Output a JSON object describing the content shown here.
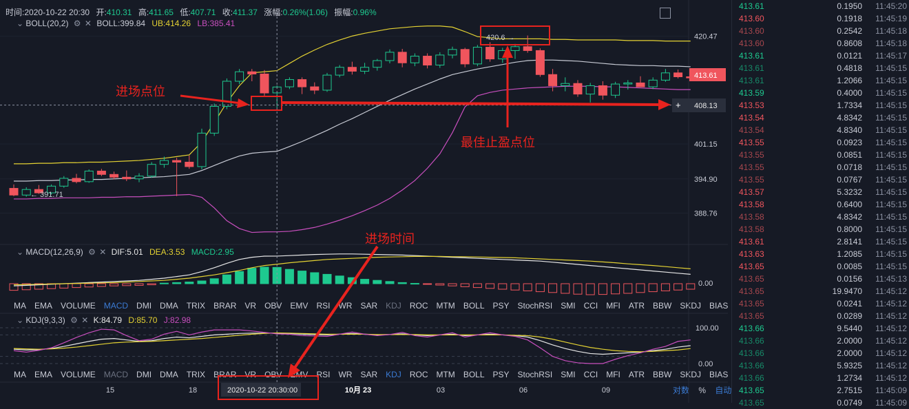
{
  "header": {
    "time_label": "时间:",
    "time": "2020-10-22 20:30",
    "open_label": "开:",
    "open": "410.31",
    "high_label": "高:",
    "high": "411.65",
    "low_label": "低:",
    "low": "407.71",
    "close_label": "收:",
    "close": "411.37",
    "change_label": "涨幅:",
    "change": "0.26%(1.06)",
    "amp_label": "振幅:",
    "amp": "0.96%"
  },
  "boll": {
    "name": "BOLL(20,2)",
    "mid": "BOLL:399.84",
    "ub": "UB:414.26",
    "lb": "LB:385.41"
  },
  "macd": {
    "name": "MACD(12,26,9)",
    "dif": "DIF:5.01",
    "dea": "DEA:3.53",
    "macd": "MACD:2.95",
    "zero": "0.00"
  },
  "kdj": {
    "name": "KDJ(9,3,3)",
    "k": "K:84.79",
    "d": "D:85.70",
    "j": "J:82.98",
    "top": "100.00",
    "bottom": "0.00"
  },
  "indicators": [
    "MA",
    "EMA",
    "VOLUME",
    "MACD",
    "DMI",
    "DMA",
    "TRIX",
    "BRAR",
    "VR",
    "OBV",
    "EMV",
    "RSI",
    "WR",
    "SAR",
    "KDJ",
    "ROC",
    "MTM",
    "BOLL",
    "PSY",
    "StochRSI",
    "SMI",
    "CCI",
    "MFI",
    "ATR",
    "BBW",
    "SKDJ",
    "BIAS"
  ],
  "price_axis": [
    "420.47",
    "401.15",
    "394.90",
    "388.76"
  ],
  "current_price": "413.61",
  "crosshair_price": "408.13",
  "min_label": "← 391.71",
  "max_label": "420.6 →",
  "x_ticks": [
    "15",
    "18",
    "10月 23",
    "03",
    "06",
    "09"
  ],
  "crosshair_time": "2020-10-22 20:30:00",
  "bottom_right": {
    "log": "对数",
    "pct": "%",
    "auto": "自动"
  },
  "annotations": {
    "entry_point": "进场点位",
    "best_tp": "最佳止盈点位",
    "entry_time": "进场时间"
  },
  "colors": {
    "up": "#1ec98f",
    "down": "#f0555d",
    "upper_band": "#e5d333",
    "mid_band": "#c9ccd6",
    "lower_band": "#c94fbf",
    "annotation": "#e8231e"
  },
  "trades": [
    {
      "p": "413.61",
      "v": "0.1950",
      "t": "11:45:20",
      "s": "up"
    },
    {
      "p": "413.60",
      "v": "0.1918",
      "t": "11:45:19",
      "s": "dn"
    },
    {
      "p": "413.60",
      "v": "0.2542",
      "t": "11:45:18",
      "s": "dn-dim"
    },
    {
      "p": "413.60",
      "v": "0.8608",
      "t": "11:45:18",
      "s": "dn-dim"
    },
    {
      "p": "413.61",
      "v": "0.0121",
      "t": "11:45:17",
      "s": "up"
    },
    {
      "p": "413.61",
      "v": "0.4818",
      "t": "11:45:15",
      "s": "up-dim"
    },
    {
      "p": "413.61",
      "v": "1.2066",
      "t": "11:45:15",
      "s": "up-dim"
    },
    {
      "p": "413.59",
      "v": "0.4000",
      "t": "11:45:15",
      "s": "up"
    },
    {
      "p": "413.53",
      "v": "1.7334",
      "t": "11:45:15",
      "s": "dn"
    },
    {
      "p": "413.54",
      "v": "4.8342",
      "t": "11:45:15",
      "s": "dn"
    },
    {
      "p": "413.54",
      "v": "4.8340",
      "t": "11:45:15",
      "s": "dn-dim"
    },
    {
      "p": "413.55",
      "v": "0.0923",
      "t": "11:45:15",
      "s": "dn"
    },
    {
      "p": "413.55",
      "v": "0.0851",
      "t": "11:45:15",
      "s": "dn-dim"
    },
    {
      "p": "413.55",
      "v": "0.0718",
      "t": "11:45:15",
      "s": "dn-dim"
    },
    {
      "p": "413.55",
      "v": "0.0767",
      "t": "11:45:15",
      "s": "dn-dim"
    },
    {
      "p": "413.57",
      "v": "5.3232",
      "t": "11:45:15",
      "s": "dn"
    },
    {
      "p": "413.58",
      "v": "0.6400",
      "t": "11:45:15",
      "s": "dn"
    },
    {
      "p": "413.58",
      "v": "4.8342",
      "t": "11:45:15",
      "s": "dn-dim"
    },
    {
      "p": "413.58",
      "v": "0.8000",
      "t": "11:45:15",
      "s": "dn-dim"
    },
    {
      "p": "413.61",
      "v": "2.8141",
      "t": "11:45:15",
      "s": "dn"
    },
    {
      "p": "413.63",
      "v": "1.2085",
      "t": "11:45:15",
      "s": "dn"
    },
    {
      "p": "413.65",
      "v": "0.0085",
      "t": "11:45:15",
      "s": "dn"
    },
    {
      "p": "413.65",
      "v": "0.0156",
      "t": "11:45:13",
      "s": "dn-dim"
    },
    {
      "p": "413.65",
      "v": "19.9470",
      "t": "11:45:12",
      "s": "dn-dim"
    },
    {
      "p": "413.65",
      "v": "0.0241",
      "t": "11:45:12",
      "s": "dn-dim"
    },
    {
      "p": "413.65",
      "v": "0.0289",
      "t": "11:45:12",
      "s": "dn-dim"
    },
    {
      "p": "413.66",
      "v": "9.5440",
      "t": "11:45:12",
      "s": "up"
    },
    {
      "p": "413.66",
      "v": "2.0000",
      "t": "11:45:12",
      "s": "up-dim"
    },
    {
      "p": "413.66",
      "v": "2.0000",
      "t": "11:45:12",
      "s": "up-dim"
    },
    {
      "p": "413.66",
      "v": "5.9325",
      "t": "11:45:12",
      "s": "up-dim"
    },
    {
      "p": "413.66",
      "v": "1.2734",
      "t": "11:45:12",
      "s": "up-dim"
    },
    {
      "p": "413.65",
      "v": "2.7515",
      "t": "11:45:09",
      "s": "up"
    },
    {
      "p": "413.65",
      "v": "0.0749",
      "t": "11:45:09",
      "s": "up-dim"
    }
  ],
  "chart_data": {
    "type": "candlestick",
    "price_ylim": [
      385,
      424
    ],
    "candles": [
      [
        393.2,
        393.9,
        391.8,
        392.0
      ],
      [
        392.0,
        393.4,
        391.7,
        393.0
      ],
      [
        393.0,
        393.8,
        392.2,
        392.4
      ],
      [
        392.4,
        393.9,
        392.1,
        393.6
      ],
      [
        393.6,
        395.4,
        393.3,
        395.0
      ],
      [
        395.0,
        395.8,
        394.1,
        394.4
      ],
      [
        394.4,
        396.6,
        394.2,
        396.3
      ],
      [
        396.3,
        396.7,
        395.4,
        395.7
      ],
      [
        395.7,
        396.2,
        394.8,
        395.2
      ],
      [
        395.2,
        396.4,
        394.5,
        394.9
      ],
      [
        394.9,
        395.9,
        394.3,
        395.4
      ],
      [
        395.4,
        397.9,
        395.1,
        397.5
      ],
      [
        397.5,
        398.9,
        396.9,
        398.2
      ],
      [
        398.2,
        398.7,
        391.8,
        397.9
      ],
      [
        397.9,
        399.1,
        396.7,
        397.1
      ],
      [
        397.1,
        403.9,
        396.6,
        403.1
      ],
      [
        403.1,
        408.4,
        402.6,
        407.9
      ],
      [
        407.9,
        412.9,
        407.4,
        412.4
      ],
      [
        412.4,
        414.6,
        411.9,
        414.1
      ],
      [
        414.1,
        414.6,
        412.4,
        413.7
      ],
      [
        413.7,
        414.4,
        409.6,
        410.3
      ],
      [
        410.31,
        411.65,
        407.71,
        411.37
      ],
      [
        411.4,
        413.1,
        411.0,
        412.7
      ],
      [
        412.7,
        413.1,
        410.1,
        411.4
      ],
      [
        411.4,
        412.2,
        410.1,
        410.8
      ],
      [
        410.8,
        413.9,
        410.5,
        413.5
      ],
      [
        413.5,
        415.3,
        413.1,
        414.9
      ],
      [
        414.9,
        415.9,
        413.6,
        414.2
      ],
      [
        414.2,
        415.7,
        413.7,
        414.9
      ],
      [
        414.9,
        416.4,
        414.3,
        416.1
      ],
      [
        416.1,
        418.1,
        415.6,
        417.6
      ],
      [
        417.6,
        418.2,
        414.9,
        415.7
      ],
      [
        415.7,
        417.4,
        415.1,
        416.9
      ],
      [
        416.9,
        417.4,
        414.7,
        415.3
      ],
      [
        415.3,
        417.6,
        414.8,
        417.1
      ],
      [
        417.1,
        418.6,
        416.5,
        418.1
      ],
      [
        418.1,
        418.4,
        414.9,
        415.5
      ],
      [
        415.5,
        418.9,
        415.1,
        418.5
      ],
      [
        418.5,
        419.4,
        415.9,
        416.4
      ],
      [
        416.4,
        418.4,
        415.7,
        417.9
      ],
      [
        417.9,
        419.1,
        416.4,
        418.6
      ],
      [
        418.6,
        420.6,
        417.5,
        417.9
      ],
      [
        417.9,
        418.3,
        413.2,
        413.6
      ],
      [
        413.6,
        414.6,
        410.6,
        411.6
      ],
      [
        411.6,
        413.1,
        410.6,
        412.0
      ],
      [
        412.0,
        412.6,
        409.6,
        410.1
      ],
      [
        410.1,
        412.1,
        408.6,
        411.6
      ],
      [
        411.6,
        412.4,
        409.1,
        409.9
      ],
      [
        409.9,
        412.3,
        409.4,
        411.9
      ],
      [
        411.9,
        412.6,
        410.9,
        412.1
      ],
      [
        412.1,
        413.3,
        411.4,
        411.4
      ],
      [
        411.4,
        413.1,
        411.0,
        412.6
      ],
      [
        412.6,
        414.6,
        412.3,
        413.9
      ],
      [
        413.9,
        414.5,
        412.9,
        413.2
      ],
      [
        413.2,
        413.6,
        412.5,
        413.0
      ]
    ],
    "ub": [
      397.6,
      397.6,
      397.7,
      397.7,
      397.8,
      397.8,
      397.9,
      397.9,
      398.0,
      398.1,
      398.2,
      398.4,
      398.6,
      398.9,
      399.2,
      401.5,
      405.0,
      408.6,
      411.6,
      413.9,
      414.1,
      414.3,
      415.6,
      416.9,
      418.0,
      419.0,
      419.8,
      420.5,
      421.0,
      421.4,
      421.8,
      422.0,
      422.2,
      422.3,
      422.3,
      422.1,
      421.3,
      420.4,
      420.2,
      420.0,
      420.0,
      420.0,
      420.0,
      419.9,
      419.9,
      419.8,
      419.8,
      419.8,
      419.8,
      419.7,
      419.7,
      419.7,
      419.6,
      419.6,
      419.6
    ],
    "mid": [
      394.5,
      394.5,
      394.6,
      394.6,
      394.7,
      394.7,
      394.8,
      394.8,
      394.9,
      395.0,
      395.1,
      395.2,
      395.3,
      395.5,
      395.7,
      396.4,
      397.3,
      398.2,
      399.0,
      399.5,
      399.7,
      399.84,
      400.7,
      401.6,
      402.6,
      403.6,
      404.7,
      405.7,
      406.8,
      407.9,
      409.0,
      410.0,
      411.0,
      411.9,
      412.8,
      413.6,
      414.1,
      414.6,
      415.0,
      415.4,
      415.8,
      416.1,
      416.2,
      416.2,
      416.1,
      416.0,
      415.8,
      415.6,
      415.4,
      415.3,
      415.2,
      415.2,
      415.1,
      415.1,
      415.0
    ],
    "lb": [
      391.3,
      391.3,
      391.4,
      391.4,
      391.5,
      391.5,
      391.5,
      391.6,
      391.6,
      391.7,
      391.7,
      391.8,
      391.9,
      392.0,
      392.1,
      391.6,
      389.7,
      387.4,
      386.0,
      385.3,
      385.4,
      385.41,
      385.5,
      385.8,
      386.2,
      386.8,
      387.5,
      388.3,
      389.2,
      390.2,
      391.4,
      392.9,
      394.6,
      396.8,
      399.4,
      403.2,
      407.8,
      409.8,
      410.4,
      410.8,
      411.0,
      411.2,
      411.3,
      411.4,
      411.5,
      411.5,
      411.5,
      411.4,
      411.4,
      411.3,
      411.2,
      411.1,
      411.0,
      410.9,
      410.9
    ],
    "macd_hist": [
      -1.2,
      -1.1,
      -1.0,
      -0.9,
      -0.8,
      -0.7,
      -0.6,
      -0.5,
      -0.4,
      -0.35,
      -0.3,
      -0.2,
      0.1,
      0.2,
      0.3,
      0.5,
      0.9,
      1.6,
      2.2,
      2.8,
      3.0,
      2.95,
      2.6,
      2.3,
      2.0,
      1.7,
      1.4,
      1.1,
      0.8,
      0.6,
      0.4,
      0.2,
      0.05,
      -0.1,
      -0.25,
      -0.4,
      -0.55,
      -0.7,
      -0.85,
      -1.0,
      -1.15,
      -1.3,
      -1.45,
      -1.6,
      -1.75,
      -1.9,
      -2.0,
      -1.95,
      -1.85,
      -1.75,
      -1.6,
      -1.45,
      -1.3,
      -1.15,
      -1.0
    ],
    "macd_dif": [
      -0.4,
      -0.3,
      -0.2,
      -0.1,
      0.0,
      0.1,
      0.2,
      0.3,
      0.4,
      0.5,
      0.6,
      0.8,
      1.0,
      1.3,
      1.6,
      2.2,
      2.9,
      3.7,
      4.4,
      4.8,
      5.0,
      5.01,
      5.1,
      5.2,
      5.3,
      5.35,
      5.4,
      5.4,
      5.35,
      5.3,
      5.25,
      5.2,
      5.1,
      5.0,
      4.9,
      4.8,
      4.7,
      4.6,
      4.5,
      4.4,
      4.3,
      4.2,
      4.1,
      3.9,
      3.7,
      3.5,
      3.3,
      3.1,
      2.9,
      2.7,
      2.5,
      2.3,
      2.1,
      1.9,
      1.7
    ],
    "macd_dea": [
      -0.2,
      -0.15,
      -0.1,
      -0.05,
      0.0,
      0.05,
      0.1,
      0.15,
      0.2,
      0.3,
      0.4,
      0.5,
      0.6,
      0.8,
      1.0,
      1.3,
      1.6,
      2.0,
      2.4,
      2.9,
      3.3,
      3.53,
      3.8,
      4.0,
      4.2,
      4.4,
      4.5,
      4.6,
      4.7,
      4.8,
      4.85,
      4.9,
      4.95,
      4.95,
      4.95,
      4.9,
      4.9,
      4.85,
      4.8,
      4.75,
      4.7,
      4.6,
      4.5,
      4.4,
      4.3,
      4.2,
      4.1,
      3.95,
      3.8,
      3.6,
      3.45,
      3.3,
      3.1,
      2.9,
      2.7
    ],
    "kdj_k": [
      40,
      38,
      39,
      42,
      48,
      55,
      62,
      68,
      70,
      66,
      62,
      64,
      70,
      74,
      72,
      76,
      80,
      82,
      84,
      85,
      85,
      84.79,
      84,
      82,
      81,
      80,
      82,
      84,
      82,
      80,
      81,
      83,
      80,
      78,
      80,
      82,
      78,
      80,
      82,
      80,
      78,
      74,
      64,
      52,
      42,
      34,
      28,
      26,
      28,
      30,
      32,
      36,
      40,
      46,
      50
    ],
    "kdj_d": [
      42,
      41,
      40,
      41,
      43,
      46,
      50,
      54,
      58,
      60,
      61,
      62,
      64,
      66,
      68,
      70,
      73,
      76,
      79,
      82,
      84,
      85.7,
      85,
      84,
      83,
      82,
      82,
      82,
      82,
      81,
      81,
      81,
      81,
      80,
      80,
      80,
      80,
      80,
      80,
      80,
      79,
      78,
      74,
      68,
      60,
      52,
      45,
      40,
      36,
      34,
      33,
      34,
      36,
      38,
      42
    ],
    "kdj_j": [
      36,
      32,
      37,
      44,
      58,
      73,
      86,
      96,
      94,
      78,
      64,
      68,
      82,
      90,
      80,
      88,
      94,
      94,
      94,
      91,
      87,
      82.98,
      82,
      78,
      77,
      76,
      82,
      88,
      82,
      78,
      81,
      87,
      78,
      74,
      80,
      86,
      74,
      80,
      86,
      80,
      76,
      66,
      44,
      20,
      8,
      2,
      0,
      0,
      12,
      22,
      30,
      40,
      48,
      62,
      66
    ]
  }
}
